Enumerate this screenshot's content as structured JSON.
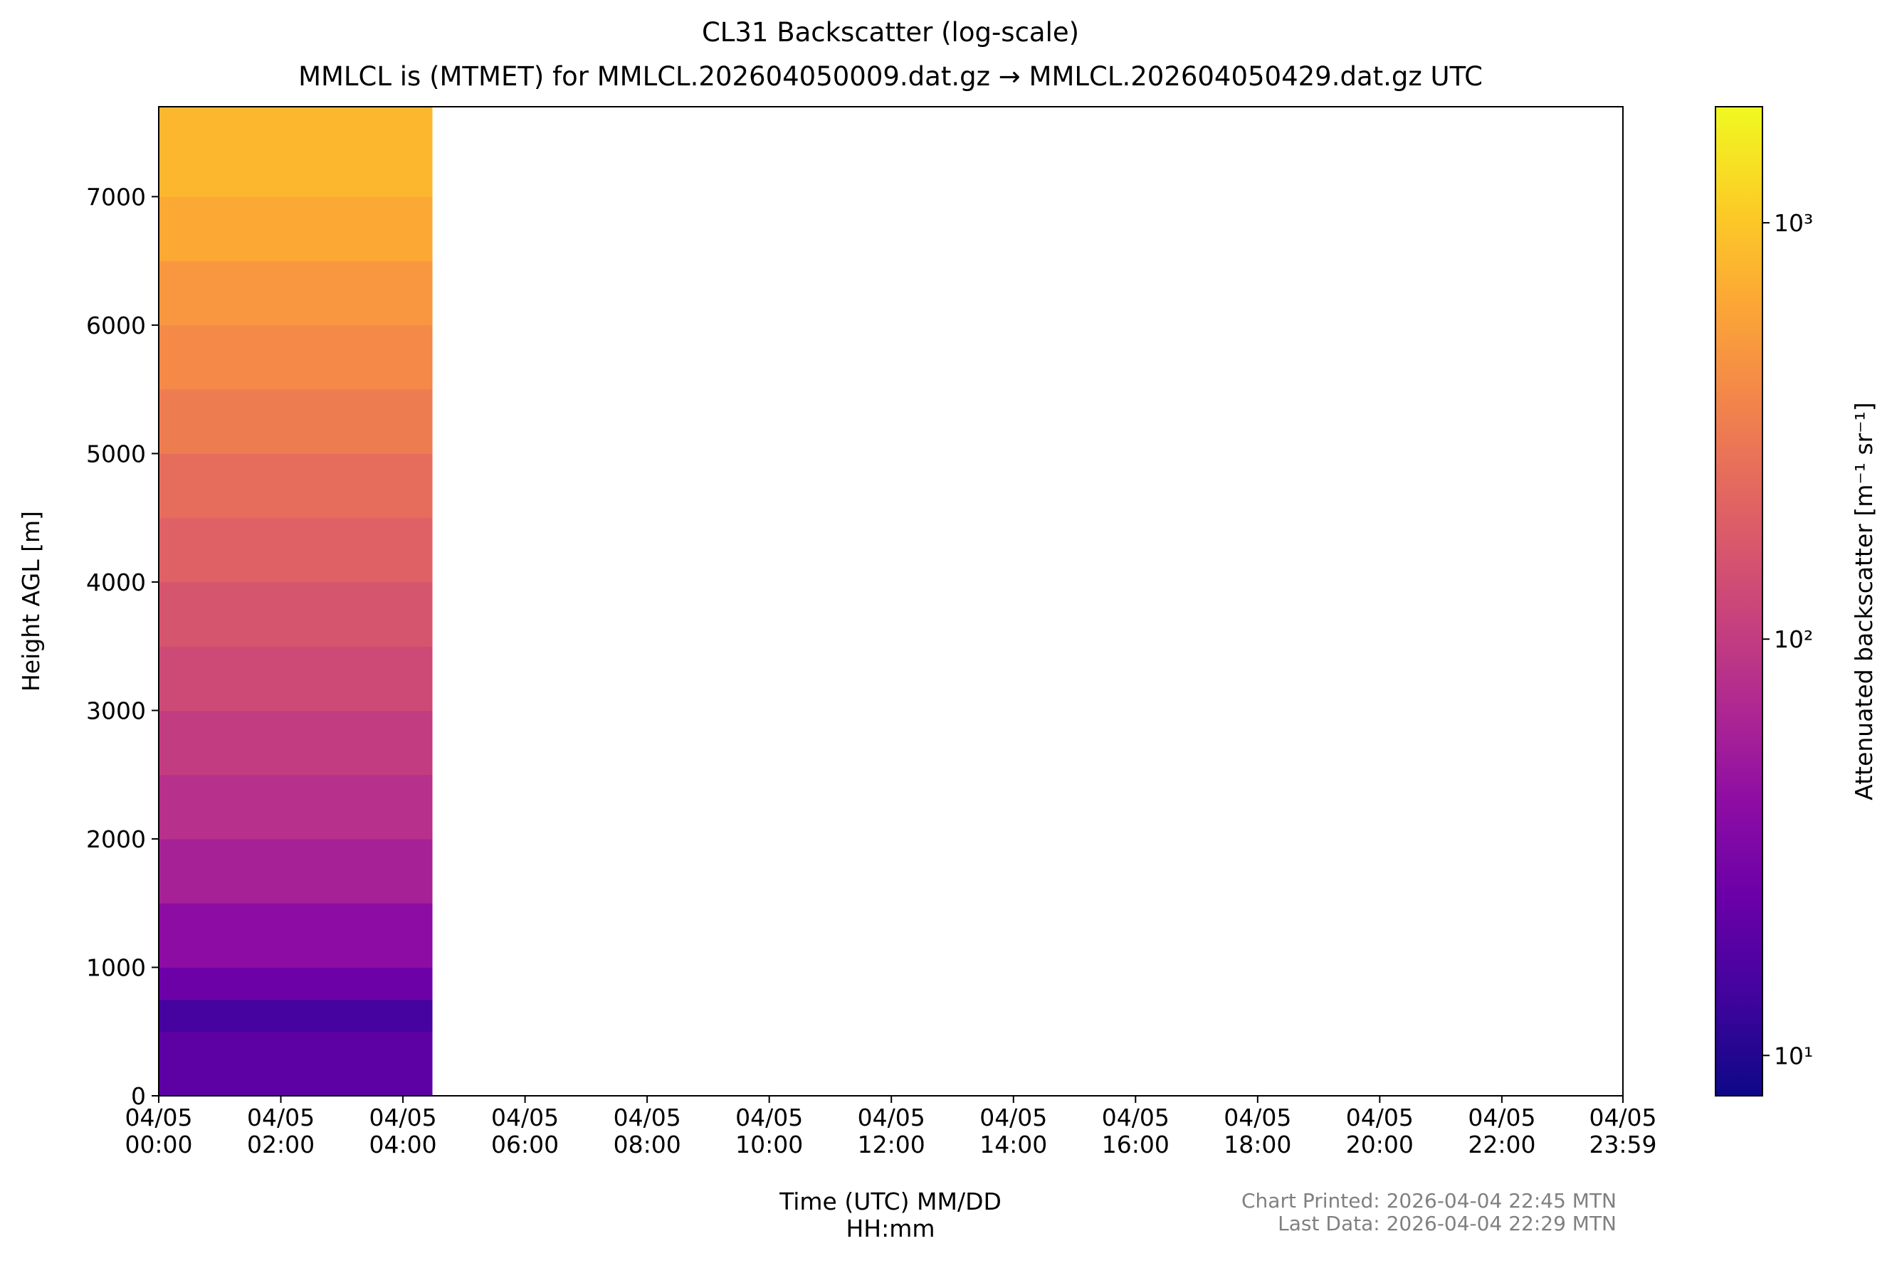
{
  "chart_data": {
    "type": "heatmap",
    "title": "CL31 Backscatter (log-scale)",
    "subtitle": "MMLCL is (MTMET) for MMLCL.202604050009.dat.gz → MMLCL.202604050429.dat.gz UTC",
    "x_label": "Time (UTC) MM/DD\nHH:mm",
    "y_label": "Height AGL [m]",
    "colorbar_label": "Attenuated backscatter [m⁻¹ sr⁻¹]",
    "notes": [
      "Chart Printed: 2026-04-04 22:45 MTN",
      "Last Data: 2026-04-04 22:29 MTN"
    ],
    "xlim": [
      0,
      1439
    ],
    "xticks": [
      {
        "value": 0,
        "label": "04/05\n00:00"
      },
      {
        "value": 120,
        "label": "04/05\n02:00"
      },
      {
        "value": 240,
        "label": "04/05\n04:00"
      },
      {
        "value": 360,
        "label": "04/05\n06:00"
      },
      {
        "value": 480,
        "label": "04/05\n08:00"
      },
      {
        "value": 600,
        "label": "04/05\n10:00"
      },
      {
        "value": 720,
        "label": "04/05\n12:00"
      },
      {
        "value": 840,
        "label": "04/05\n14:00"
      },
      {
        "value": 960,
        "label": "04/05\n16:00"
      },
      {
        "value": 1080,
        "label": "04/05\n18:00"
      },
      {
        "value": 1200,
        "label": "04/05\n20:00"
      },
      {
        "value": 1320,
        "label": "04/05\n22:00"
      },
      {
        "value": 1439,
        "label": "04/05\n23:59"
      }
    ],
    "ylim": [
      0,
      7700
    ],
    "yticks": [
      0,
      1000,
      2000,
      3000,
      4000,
      5000,
      6000,
      7000
    ],
    "x_edges": [
      0,
      269
    ],
    "y_edges": [
      0,
      250,
      500,
      750,
      1000,
      1500,
      2000,
      2500,
      3000,
      3500,
      4000,
      4500,
      5000,
      5500,
      6000,
      6500,
      7000,
      7700
    ],
    "z": [
      20,
      20,
      15,
      25,
      40,
      60,
      80,
      100,
      130,
      160,
      200,
      250,
      320,
      400,
      500,
      650,
      800
    ],
    "colormap": "plasma",
    "color_log_scale": true,
    "clim": [
      8,
      1900
    ],
    "cticks": [
      {
        "value": 10,
        "label": "10¹"
      },
      {
        "value": 100,
        "label": "10²"
      },
      {
        "value": 1000,
        "label": "10³"
      }
    ]
  }
}
